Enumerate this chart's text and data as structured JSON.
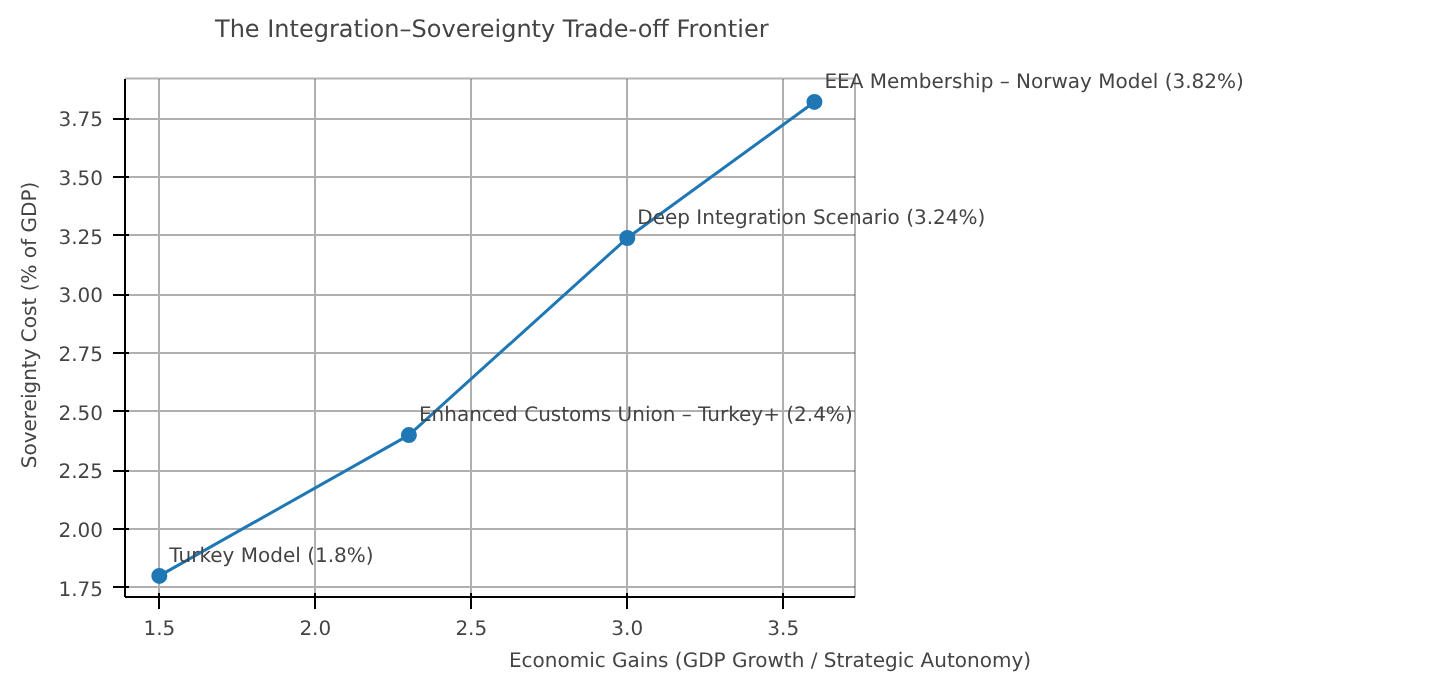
{
  "chart_data": {
    "type": "line",
    "title": "The Integration–Sovereignty Trade-off Frontier",
    "xlabel": "Economic Gains (GDP Growth / Strategic Autonomy)",
    "ylabel": "Sovereignty Cost (% of GDP)",
    "x": [
      1.5,
      2.3,
      3.0,
      3.6
    ],
    "series": [
      {
        "color": "#1f77b4",
        "values": [
          1.8,
          2.4,
          3.24,
          3.82
        ]
      }
    ],
    "annotations": [
      {
        "text": "Turkey Model (1.8%)",
        "x": 1.5,
        "y": 1.8
      },
      {
        "text": "Enhanced Customs Union – Turkey+ (2.4%)",
        "x": 2.3,
        "y": 2.4
      },
      {
        "text": "Deep Integration Scenario (3.24%)",
        "x": 3.0,
        "y": 3.24
      },
      {
        "text": "EEA Membership – Norway Model (3.82%)",
        "x": 3.6,
        "y": 3.82
      }
    ],
    "xlim": [
      1.39,
      3.73
    ],
    "ylim": [
      1.71,
      3.92
    ],
    "xticks": [
      {
        "value": 1.5,
        "label": "1.5"
      },
      {
        "value": 2.0,
        "label": "2.0"
      },
      {
        "value": 2.5,
        "label": "2.5"
      },
      {
        "value": 3.0,
        "label": "3.0"
      },
      {
        "value": 3.5,
        "label": "3.5"
      }
    ],
    "yticks": [
      {
        "value": 1.75,
        "label": "1.75"
      },
      {
        "value": 2.0,
        "label": "2.00"
      },
      {
        "value": 2.25,
        "label": "2.25"
      },
      {
        "value": 2.5,
        "label": "2.50"
      },
      {
        "value": 2.75,
        "label": "2.75"
      },
      {
        "value": 3.0,
        "label": "3.00"
      },
      {
        "value": 3.25,
        "label": "3.25"
      },
      {
        "value": 3.5,
        "label": "3.50"
      },
      {
        "value": 3.75,
        "label": "3.75"
      }
    ],
    "grid": true,
    "marker": "circle",
    "line_style": "solid"
  }
}
